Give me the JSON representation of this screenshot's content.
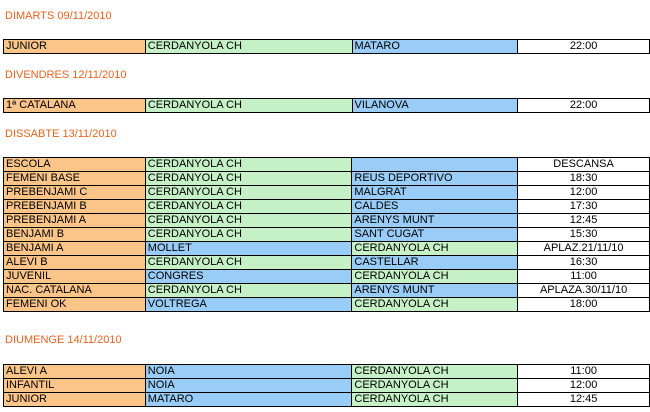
{
  "colors": {
    "category": "#fbc58a",
    "cerdanyola": "#c6f0c6",
    "opponent": "#99ccf6",
    "time": "#ffffff",
    "heading": "#e8621f"
  },
  "sections": [
    {
      "day": "DIMARTS 09/11/2010",
      "rows": [
        {
          "category": "JUNIOR",
          "home": "CERDANYOLA CH",
          "away": "MATARO",
          "time": "22:00"
        }
      ]
    },
    {
      "day": "DIVENDRES 12/11/2010",
      "rows": [
        {
          "category": "1ª CATALANA",
          "home": "CERDANYOLA CH",
          "away": "VILANOVA",
          "time": "22:00"
        }
      ]
    },
    {
      "day": "DISSABTE 13/11/2010",
      "rows": [
        {
          "category": "ESCOLA",
          "home": "CERDANYOLA CH",
          "away": "",
          "time": "DESCANSA"
        },
        {
          "category": "FEMENI BASE",
          "home": "CERDANYOLA CH",
          "away": "REUS DEPORTIVO",
          "time": "18:30"
        },
        {
          "category": "PREBENJAMI C",
          "home": "CERDANYOLA CH",
          "away": "MALGRAT",
          "time": "12:00"
        },
        {
          "category": "PREBENJAMI B",
          "home": "CERDANYOLA CH",
          "away": "CALDES",
          "time": "17:30"
        },
        {
          "category": "PREBENJAMI A",
          "home": "CERDANYOLA CH",
          "away": "ARENYS MUNT",
          "time": "12:45"
        },
        {
          "category": "BENJAMI B",
          "home": "CERDANYOLA CH",
          "away": "SANT CUGAT",
          "time": "15:30"
        },
        {
          "category": "BENJAMI A",
          "home": "MOLLET",
          "away": "CERDANYOLA CH",
          "time": "APLAZ.21/11/10"
        },
        {
          "category": "ALEVI B",
          "home": "CERDANYOLA CH",
          "away": "CASTELLAR",
          "time": "16:30"
        },
        {
          "category": "JUVENIL",
          "home": "CONGRES",
          "away": "CERDANYOLA CH",
          "time": "11:00"
        },
        {
          "category": "NAC. CATALANA",
          "home": "CERDANYOLA CH",
          "away": "ARENYS MUNT",
          "time": "APLAZA.30/11/10"
        },
        {
          "category": "FEMENI OK",
          "home": "VOLTREGA",
          "away": "CERDANYOLA CH",
          "time": "18:00"
        }
      ]
    },
    {
      "day": "DIUMENGE 14/11/2010",
      "rows": [
        {
          "category": "ALEVI A",
          "home": "NOIA",
          "away": "CERDANYOLA CH",
          "time": "11:00"
        },
        {
          "category": "INFANTIL",
          "home": "NOIA",
          "away": "CERDANYOLA CH",
          "time": "12:00"
        },
        {
          "category": "JUNIOR",
          "home": "MATARO",
          "away": "CERDANYOLA CH",
          "time": "12:45"
        }
      ]
    }
  ]
}
